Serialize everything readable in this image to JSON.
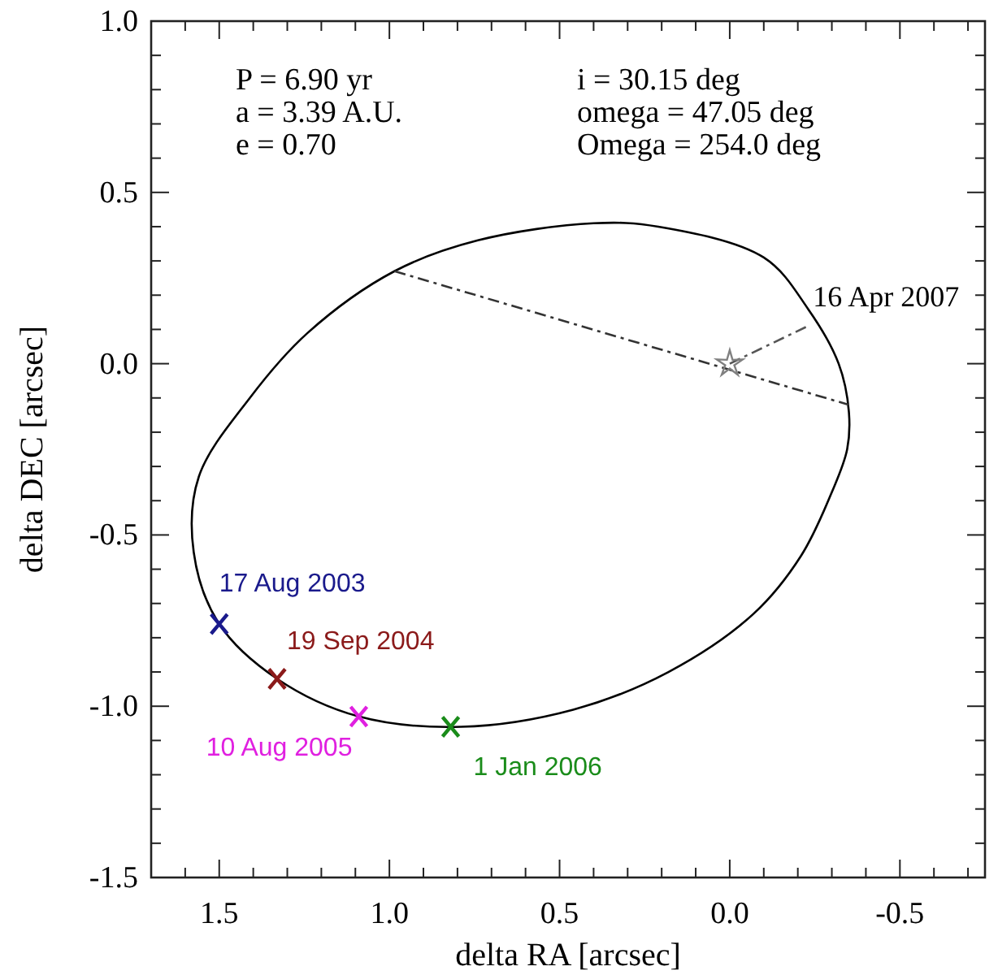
{
  "chart_data": {
    "type": "line",
    "xlabel": "delta RA [arcsec]",
    "ylabel": "delta DEC [arcsec]",
    "xlim": [
      1.7,
      -0.75
    ],
    "ylim": [
      -1.5,
      1.0
    ],
    "xticks": [
      {
        "value": 1.6,
        "label": null
      },
      1.5,
      {
        "value": 1.4,
        "label": null
      },
      {
        "value": 1.3,
        "label": null
      },
      {
        "value": 1.2,
        "label": null
      },
      {
        "value": 1.1,
        "label": null
      },
      {
        "value": 1,
        "label": "1.0"
      },
      {
        "value": 0.9,
        "label": null
      },
      {
        "value": 0.8,
        "label": null
      },
      {
        "value": 0.7,
        "label": null
      },
      {
        "value": 0.6,
        "label": null
      },
      0.5,
      {
        "value": 0.4,
        "label": null
      },
      {
        "value": 0.3,
        "label": null
      },
      {
        "value": 0.2,
        "label": null
      },
      {
        "value": 0.1,
        "label": null
      },
      {
        "value": 0,
        "label": "0.0"
      },
      {
        "value": -0.1,
        "label": null
      },
      {
        "value": -0.2,
        "label": null
      },
      {
        "value": -0.3,
        "label": null
      },
      {
        "value": -0.4,
        "label": null
      },
      -0.5,
      {
        "value": -0.6,
        "label": null
      },
      {
        "value": -0.7,
        "label": null
      }
    ],
    "yticks": [
      -1.5,
      {
        "value": -1.4,
        "label": null
      },
      {
        "value": -1.3,
        "label": null
      },
      {
        "value": -1.2,
        "label": null
      },
      {
        "value": -1.1,
        "label": null
      },
      {
        "value": -1,
        "label": "-1.0"
      },
      {
        "value": -0.9,
        "label": null
      },
      {
        "value": -0.8,
        "label": null
      },
      {
        "value": -0.7,
        "label": null
      },
      {
        "value": -0.6,
        "label": null
      },
      -0.5,
      {
        "value": -0.4,
        "label": null
      },
      {
        "value": -0.3,
        "label": null
      },
      {
        "value": -0.2,
        "label": null
      },
      {
        "value": -0.1,
        "label": null
      },
      {
        "value": 0,
        "label": "0.0"
      },
      {
        "value": 0.1,
        "label": null
      },
      {
        "value": 0.2,
        "label": null
      },
      {
        "value": 0.3,
        "label": null
      },
      {
        "value": 0.4,
        "label": null
      },
      0.5,
      {
        "value": 0.6,
        "label": null
      },
      {
        "value": 0.7,
        "label": null
      },
      {
        "value": 0.8,
        "label": null
      },
      {
        "value": 0.9,
        "label": null
      },
      {
        "value": 1,
        "label": "1.0"
      }
    ],
    "grid": false,
    "legend": false,
    "annotations": [
      "P = 6.90 yr",
      "a = 3.39 A.U.",
      "e = 0.70",
      "i = 30.15 deg",
      "omega = 47.05 deg",
      "Omega = 254.0 deg",
      {
        "text": "16 Apr 2007",
        "x": -0.23,
        "y": 0.11
      }
    ],
    "series": [
      {
        "line_style": "dashed",
        "color": "#333333",
        "x": [
          0.985,
          -0.35
        ],
        "values": [
          0.27,
          -0.12
        ]
      },
      {
        "type": "line",
        "line_style": "dashed",
        "color": "#555555",
        "x": [
          0,
          -0.23
        ],
        "values": [
          0,
          0.11
        ]
      },
      {
        "type": "scatter",
        "marker": "star",
        "color": "#808080",
        "x": [
          0
        ],
        "values": [
          0
        ]
      },
      {
        "type": "scatter",
        "marker": "cross",
        "name": "17 Aug 2003",
        "color": "#1a1a8c",
        "x": [
          1.5
        ],
        "values": [
          -0.76
        ]
      },
      {
        "type": "scatter",
        "marker": "cross",
        "name": "19 Sep 2004",
        "color": "#8b1a1a",
        "x": [
          1.33
        ],
        "values": [
          -0.92
        ]
      },
      {
        "type": "scatter",
        "marker": "cross",
        "name": "10 Aug 2005",
        "color": "#e020e0",
        "x": [
          1.09
        ],
        "values": [
          -1.03
        ]
      },
      {
        "type": "scatter",
        "marker": "cross",
        "name": "1 Jan 2006",
        "color": "#1a8c1a",
        "x": [
          0.82
        ],
        "values": [
          -1.06
        ]
      }
    ]
  }
}
